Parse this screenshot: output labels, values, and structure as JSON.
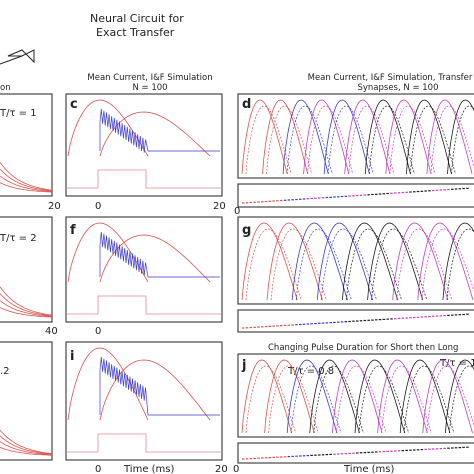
{
  "header": {
    "title_line1": "Neural Circuit for",
    "title_line2": "Exact Transfer"
  },
  "column_titles": {
    "a_fragment": "on",
    "c_line1": "Mean Current, I&F Simulation",
    "c_line2": "N = 100",
    "d_line1": "Mean Current, I&F Simulation, Transfer",
    "d_line2": "Synapses, N = 100"
  },
  "panels": {
    "c": "c",
    "d": "d",
    "f": "f",
    "g": "g",
    "i": "i",
    "j": "j"
  },
  "ratio_labels": {
    "row1": "T/τ = 1",
    "row2": "T/τ = 2",
    "row3": ".2",
    "j_left": "T/τ = 0.8",
    "j_right": "T/τ = 1"
  },
  "j_title": "Changing Pulse Duration for Short then Long",
  "tick_labels": {
    "a_row1_end": "20",
    "a_row2_end": "40",
    "c_zero": "0",
    "c_twenty": "20",
    "d_zero": "0",
    "f_zero": "0",
    "i_zero": "0",
    "i_twenty": "20",
    "j_zero": "0"
  },
  "xlabel": "Time (ms)",
  "colors": {
    "red": "#d9534f",
    "blue": "#3b3bcc",
    "black": "#1a1a1a",
    "magenta": "#c040c0",
    "pink": "#e08a9a",
    "axis": "#222222"
  },
  "chart_data": [
    {
      "type": "line",
      "panel": "a",
      "description_free": true,
      "x_range": [
        0,
        20
      ],
      "series": [
        {
          "values": [
            1.0,
            0.55,
            0.3,
            0.17,
            0.1
          ]
        },
        {
          "values": [
            0.8,
            0.45,
            0.25,
            0.14,
            0.08
          ]
        },
        {
          "values": [
            0.6,
            0.34,
            0.19,
            0.1,
            0.06
          ]
        }
      ]
    },
    {
      "type": "line",
      "panel": "c",
      "xlim": [
        -5,
        20
      ],
      "ticks": [
        "0",
        "20"
      ],
      "xlabel": "",
      "pulse_end": 5
    },
    {
      "type": "line",
      "panel": "d",
      "pulses": 11,
      "colors_cycle": [
        "red",
        "red",
        "blue",
        "magenta",
        "blue",
        "magenta",
        "black",
        "magenta",
        "black",
        "magenta",
        "black"
      ]
    },
    {
      "type": "line",
      "panel": "f",
      "xlim": [
        -5,
        20
      ],
      "ticks": [
        "0"
      ]
    },
    {
      "type": "line",
      "panel": "g",
      "pulses": 9,
      "colors_cycle": [
        "red",
        "red",
        "blue",
        "blue",
        "black",
        "black",
        "magenta",
        "magenta",
        "black"
      ]
    },
    {
      "type": "line",
      "panel": "i",
      "xlim": [
        -5,
        20
      ],
      "ticks": [
        "0",
        "20"
      ]
    },
    {
      "type": "line",
      "panel": "j",
      "pulses": 10,
      "colors_cycle": [
        "red",
        "red",
        "blue",
        "black",
        "magenta",
        "black",
        "magenta",
        "black",
        "magenta",
        "black"
      ]
    }
  ]
}
